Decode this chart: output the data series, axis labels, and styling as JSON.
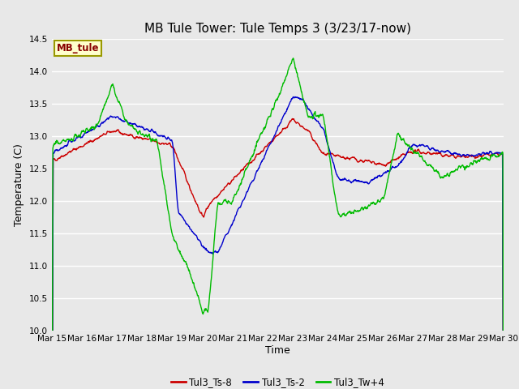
{
  "title": "MB Tule Tower: Tule Temps 3 (3/23/17-now)",
  "xlabel": "Time",
  "ylabel": "Temperature (C)",
  "ylim": [
    10.0,
    14.5
  ],
  "yticks": [
    10.0,
    10.5,
    11.0,
    11.5,
    12.0,
    12.5,
    13.0,
    13.5,
    14.0,
    14.5
  ],
  "xtick_labels": [
    "Mar 15",
    "Mar 16",
    "Mar 17",
    "Mar 18",
    "Mar 19",
    "Mar 20",
    "Mar 21",
    "Mar 22",
    "Mar 23",
    "Mar 24",
    "Mar 25",
    "Mar 26",
    "Mar 27",
    "Mar 28",
    "Mar 29",
    "Mar 30"
  ],
  "bg_color": "#e8e8e8",
  "plot_bg_color": "#e8e8e8",
  "grid_color": "#ffffff",
  "line_colors": [
    "#cc0000",
    "#0000cc",
    "#00bb00"
  ],
  "line_labels": [
    "Tul3_Ts-8",
    "Tul3_Ts-2",
    "Tul3_Tw+4"
  ],
  "legend_box_color": "#ffffcc",
  "legend_box_edge": "#999900",
  "legend_text": "MB_tule",
  "legend_text_color": "#880000",
  "title_fontsize": 11,
  "axis_fontsize": 9,
  "tick_fontsize": 7.5
}
